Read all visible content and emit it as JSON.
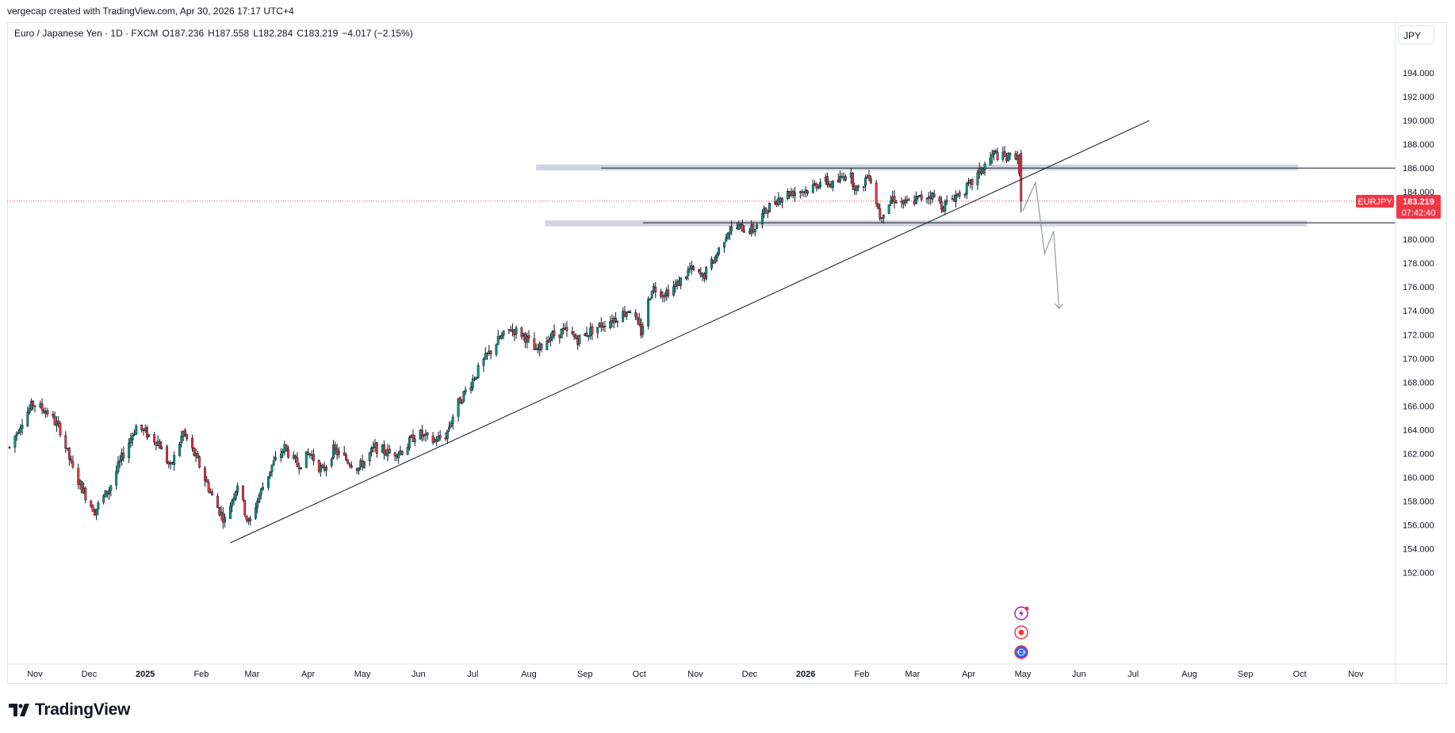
{
  "credit": "vergecap created with TradingView.com, Apr 30, 2026 17:17 UTC+4",
  "legend": {
    "symbol_desc": "Euro / Japanese Yen · 1D · FXCM",
    "open": "O187.236",
    "high": "H187.558",
    "low": "L182.284",
    "close": "C183.219",
    "change": "−4.017 (−2.15%)"
  },
  "currency": "JPY",
  "logo_text": "TradingView",
  "price_tag": {
    "symbol": "EURJPY",
    "price": "183.219",
    "countdown": "07:42:40",
    "color": "#f23645"
  },
  "colors": {
    "up": "#089981",
    "down": "#f23645",
    "trendline": "#131722",
    "zone": "#d1d4dc",
    "projection": "#9598a1"
  },
  "icons": [
    "flash-icon",
    "record-icon",
    "globe-icon"
  ],
  "chart_data": {
    "type": "candlestick",
    "symbol": "EURJPY",
    "timeframe": "1D",
    "ylim": [
      151.0,
      196.5
    ],
    "y_ticks": [
      "194.000",
      "192.000",
      "190.000",
      "188.000",
      "186.000",
      "184.000",
      "182.000",
      "180.000",
      "178.000",
      "176.000",
      "174.000",
      "172.000",
      "170.000",
      "168.000",
      "166.000",
      "164.000",
      "162.000",
      "160.000",
      "158.000",
      "156.000",
      "154.000",
      "152.000"
    ],
    "x_ticks": [
      {
        "label": "Nov",
        "date": "2024-11-01"
      },
      {
        "label": "Dec",
        "date": "2024-12-01"
      },
      {
        "label": "2025",
        "date": "2025-01-01",
        "bold": true
      },
      {
        "label": "Feb",
        "date": "2025-02-01"
      },
      {
        "label": "Mar",
        "date": "2025-03-01"
      },
      {
        "label": "Apr",
        "date": "2025-04-01"
      },
      {
        "label": "May",
        "date": "2025-05-01"
      },
      {
        "label": "Jun",
        "date": "2025-06-01"
      },
      {
        "label": "Jul",
        "date": "2025-07-01"
      },
      {
        "label": "Aug",
        "date": "2025-08-01"
      },
      {
        "label": "Sep",
        "date": "2025-09-01"
      },
      {
        "label": "Oct",
        "date": "2025-10-01"
      },
      {
        "label": "Nov",
        "date": "2025-11-01"
      },
      {
        "label": "Dec",
        "date": "2025-12-01"
      },
      {
        "label": "2026",
        "date": "2026-01-01",
        "bold": true
      },
      {
        "label": "Feb",
        "date": "2026-02-01"
      },
      {
        "label": "Mar",
        "date": "2026-03-01"
      },
      {
        "label": "Apr",
        "date": "2026-04-01"
      },
      {
        "label": "May",
        "date": "2026-05-01"
      },
      {
        "label": "Jun",
        "date": "2026-06-01"
      },
      {
        "label": "Jul",
        "date": "2026-07-01"
      },
      {
        "label": "Aug",
        "date": "2026-08-01"
      },
      {
        "label": "Sep",
        "date": "2026-09-01"
      },
      {
        "label": "Oct",
        "date": "2026-10-01"
      },
      {
        "label": "Nov",
        "date": "2026-11-01"
      }
    ],
    "price_path": [
      [
        "2024-10-18",
        162.5
      ],
      [
        "2024-10-25",
        164.8
      ],
      [
        "2024-10-31",
        166.2
      ],
      [
        "2024-11-08",
        165.5
      ],
      [
        "2024-11-15",
        164.0
      ],
      [
        "2024-11-22",
        160.6
      ],
      [
        "2024-11-29",
        158.5
      ],
      [
        "2024-12-04",
        157.2
      ],
      [
        "2024-12-12",
        159.0
      ],
      [
        "2024-12-20",
        162.0
      ],
      [
        "2024-12-27",
        164.3
      ],
      [
        "2025-01-08",
        163.0
      ],
      [
        "2025-01-15",
        160.8
      ],
      [
        "2025-01-22",
        163.8
      ],
      [
        "2025-01-31",
        161.0
      ],
      [
        "2025-02-08",
        158.0
      ],
      [
        "2025-02-14",
        156.4
      ],
      [
        "2025-02-21",
        159.5
      ],
      [
        "2025-02-27",
        156.0
      ],
      [
        "2025-03-05",
        158.5
      ],
      [
        "2025-03-12",
        161.0
      ],
      [
        "2025-03-19",
        162.5
      ],
      [
        "2025-03-26",
        161.0
      ],
      [
        "2025-04-02",
        162.0
      ],
      [
        "2025-04-09",
        160.5
      ],
      [
        "2025-04-15",
        162.3
      ],
      [
        "2025-04-22",
        161.5
      ],
      [
        "2025-04-29",
        160.8
      ],
      [
        "2025-05-08",
        162.5
      ],
      [
        "2025-05-16",
        162.0
      ],
      [
        "2025-05-24",
        162.3
      ],
      [
        "2025-05-31",
        163.8
      ],
      [
        "2025-06-08",
        163.0
      ],
      [
        "2025-06-16",
        163.5
      ],
      [
        "2025-06-22",
        166.0
      ],
      [
        "2025-06-30",
        168.0
      ],
      [
        "2025-07-08",
        170.0
      ],
      [
        "2025-07-15",
        171.5
      ],
      [
        "2025-07-22",
        172.5
      ],
      [
        "2025-07-29",
        172.0
      ],
      [
        "2025-08-05",
        170.5
      ],
      [
        "2025-08-12",
        171.8
      ],
      [
        "2025-08-20",
        172.3
      ],
      [
        "2025-08-28",
        171.6
      ],
      [
        "2025-09-05",
        172.4
      ],
      [
        "2025-09-12",
        173.0
      ],
      [
        "2025-09-19",
        173.5
      ],
      [
        "2025-09-26",
        174.2
      ],
      [
        "2025-10-02",
        172.2
      ],
      [
        "2025-10-08",
        176.0
      ],
      [
        "2025-10-15",
        175.5
      ],
      [
        "2025-10-22",
        176.2
      ],
      [
        "2025-10-29",
        177.5
      ],
      [
        "2025-11-05",
        176.8
      ],
      [
        "2025-11-12",
        178.5
      ],
      [
        "2025-11-19",
        180.8
      ],
      [
        "2025-11-26",
        181.0
      ],
      [
        "2025-12-03",
        180.8
      ],
      [
        "2025-12-10",
        182.5
      ],
      [
        "2025-12-17",
        183.5
      ],
      [
        "2025-12-24",
        184.0
      ],
      [
        "2026-01-03",
        184.2
      ],
      [
        "2026-01-10",
        185.0
      ],
      [
        "2026-01-17",
        184.5
      ],
      [
        "2026-01-24",
        185.8
      ],
      [
        "2026-01-30",
        184.0
      ],
      [
        "2026-02-05",
        185.6
      ],
      [
        "2026-02-11",
        182.0
      ],
      [
        "2026-02-18",
        183.5
      ],
      [
        "2026-02-25",
        183.0
      ],
      [
        "2026-03-04",
        183.4
      ],
      [
        "2026-03-11",
        183.8
      ],
      [
        "2026-03-18",
        182.8
      ],
      [
        "2026-03-25",
        183.7
      ],
      [
        "2026-04-01",
        184.4
      ],
      [
        "2026-04-08",
        185.8
      ],
      [
        "2026-04-15",
        187.2
      ],
      [
        "2026-04-22",
        186.8
      ],
      [
        "2026-04-28",
        187.2
      ],
      [
        "2026-04-30",
        183.2
      ]
    ],
    "trendline": {
      "start": [
        "2025-02-17",
        154.5
      ],
      "end": [
        "2026-07-10",
        190.0
      ]
    },
    "zones": [
      {
        "start": "2025-08-05",
        "end": "2026-09-30",
        "top": 186.3,
        "bottom": 185.8
      },
      {
        "start": "2025-08-10",
        "end": "2026-10-05",
        "top": 181.6,
        "bottom": 181.1
      }
    ],
    "hlines": [
      {
        "start": "2025-09-10",
        "end": "2026-12-05",
        "price": 186.0
      },
      {
        "start": "2025-10-03",
        "end": "2026-12-05",
        "price": 181.4
      }
    ],
    "projection_path": [
      [
        "2026-05-01",
        182.4
      ],
      [
        "2026-05-08",
        184.8
      ],
      [
        "2026-05-13",
        178.8
      ],
      [
        "2026-05-18",
        180.7
      ],
      [
        "2026-05-21",
        174.2
      ]
    ],
    "last_price": 183.219
  }
}
